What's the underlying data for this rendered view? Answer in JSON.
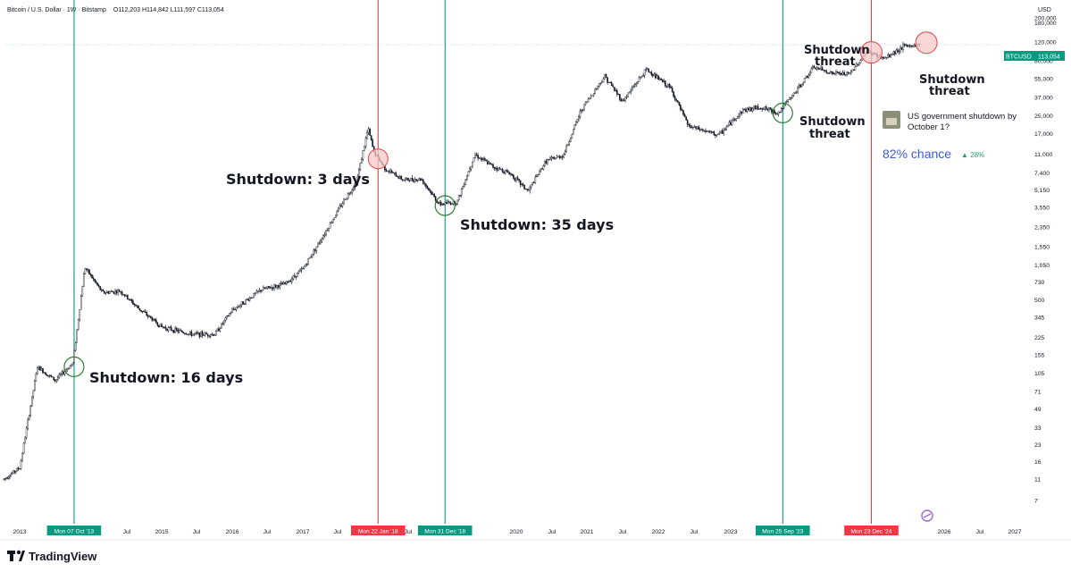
{
  "header": {
    "symbol_line": "Bitcoin / U.S. Dollar · 1W · Bitstamp",
    "ohlc": "O112,203  H114,842  L111,597  C113,054",
    "currency": "USD"
  },
  "price_badge": {
    "symbol": "BTCUSD",
    "value": "113,054"
  },
  "colors": {
    "candle": "#131722",
    "green_line": "#089981",
    "red_line": "#f23645",
    "green_circle": "#2e7d32",
    "red_circle_fill": "#f8c9c9",
    "red_circle_stroke": "#e05555"
  },
  "prediction": {
    "question": "US government shutdown by October 1?",
    "chance": "82% chance",
    "change": "▲ 28%"
  },
  "footer": {
    "brand": "TradingView",
    "logo_icon": "tradingview-logo-icon"
  },
  "chart_data": {
    "type": "line",
    "title": "",
    "xlabel": "",
    "ylabel": "",
    "y_scale": "log",
    "ylim": [
      5,
      220000
    ],
    "y_ticks": [
      "200,000",
      "180,000",
      "120,000",
      "80,000",
      "55,000",
      "37,000",
      "25,000",
      "17,000",
      "11,000",
      "7,400",
      "5,150",
      "3,550",
      "2,350",
      "1,550",
      "1,050",
      "730",
      "500",
      "345",
      "225",
      "155",
      "105",
      "71",
      "49",
      "33",
      "23",
      "16",
      "11",
      "7"
    ],
    "x_ticks": [
      "2013",
      "Jul",
      "2015",
      "Jul",
      "2016",
      "Jul",
      "2017",
      "Jul",
      "Jul",
      "2020",
      "Jul",
      "2021",
      "Jul",
      "2022",
      "Jul",
      "2023",
      "Jul",
      "2026",
      "Jul",
      "2027"
    ],
    "date_labels": [
      {
        "label": "Mon 07 Oct '13",
        "color": "green"
      },
      {
        "label": "Mon 22 Jan '18",
        "color": "red"
      },
      {
        "label": "Mon 31 Dec '18",
        "color": "green"
      },
      {
        "label": "Mon 25 Sep '23",
        "color": "green"
      },
      {
        "label": "Mon 23 Dec '24",
        "color": "red"
      }
    ],
    "series": [
      {
        "x": [
          "2012-10",
          "2013-01",
          "2013-04",
          "2013-07",
          "2013-10",
          "2013-12",
          "2014-03",
          "2014-06",
          "2014-09",
          "2015-01",
          "2015-06",
          "2015-10",
          "2016-01",
          "2016-06",
          "2016-10",
          "2017-01",
          "2017-05",
          "2017-08",
          "2017-10",
          "2017-12",
          "2018-01",
          "2018-03",
          "2018-06",
          "2018-09",
          "2018-12",
          "2019-03",
          "2019-06",
          "2019-09",
          "2019-12",
          "2020-03",
          "2020-06",
          "2020-09",
          "2020-12",
          "2021-04",
          "2021-07",
          "2021-11",
          "2022-03",
          "2022-06",
          "2022-11",
          "2023-03",
          "2023-06",
          "2023-09",
          "2023-12",
          "2024-03",
          "2024-06",
          "2024-09",
          "2024-12",
          "2025-03",
          "2025-06",
          "2025-09"
        ],
        "values": [
          11,
          14,
          120,
          90,
          130,
          1000,
          580,
          600,
          420,
          280,
          240,
          240,
          400,
          620,
          700,
          960,
          2200,
          4200,
          6000,
          19000,
          11500,
          8000,
          6400,
          6500,
          3800,
          4000,
          11000,
          8500,
          7300,
          5000,
          9500,
          10800,
          28000,
          58000,
          34000,
          67000,
          45000,
          20000,
          16500,
          28000,
          30000,
          26500,
          42000,
          70000,
          62000,
          60000,
          98000,
          84000,
          108000,
          113054
        ]
      }
    ],
    "events": [
      {
        "date": "2013-10-07",
        "label": "Shutdown: 16 days",
        "marker": "green-circle"
      },
      {
        "date": "2018-01-22",
        "label": "Shutdown: 3 days",
        "marker": "red-circle"
      },
      {
        "date": "2018-12-31",
        "label": "Shutdown: 35 days",
        "marker": "green-circle"
      },
      {
        "date": "2023-09-25",
        "label": "Shutdown threat",
        "marker": "green-circle"
      },
      {
        "date": "2024-12-23",
        "label": "Shutdown threat",
        "marker": "red-circle"
      },
      {
        "date": "2025-10-01",
        "label": "Shutdown threat",
        "marker": "red-circle"
      }
    ]
  }
}
